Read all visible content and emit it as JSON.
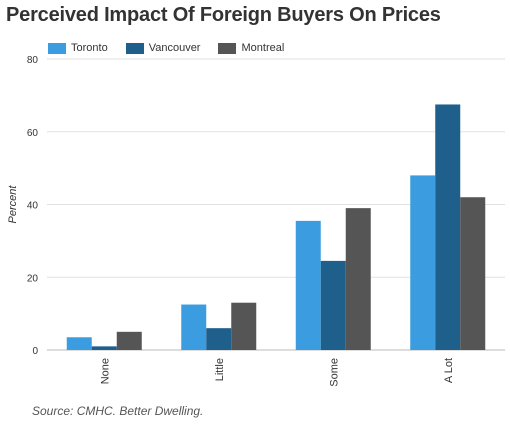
{
  "chart_data": {
    "type": "bar",
    "title": "Perceived Impact Of Foreign Buyers On Prices",
    "ylabel": "Percent",
    "xlabel": "",
    "categories": [
      "None",
      "Little",
      "Some",
      "A Lot"
    ],
    "series": [
      {
        "name": "Toronto",
        "color": "#3b9ddf",
        "values": [
          3.5,
          12.5,
          35.5,
          48
        ]
      },
      {
        "name": "Vancouver",
        "color": "#1f5f8b",
        "values": [
          1,
          6,
          24.5,
          67.5
        ]
      },
      {
        "name": "Montreal",
        "color": "#555555",
        "values": [
          5,
          13,
          39,
          42
        ]
      }
    ],
    "ylim": [
      0,
      80
    ],
    "yticks": [
      0,
      20,
      40,
      60,
      80
    ],
    "grid": true,
    "legend": "top-left"
  },
  "footer": {
    "source": "Source: CMHC. Better Dwelling."
  }
}
